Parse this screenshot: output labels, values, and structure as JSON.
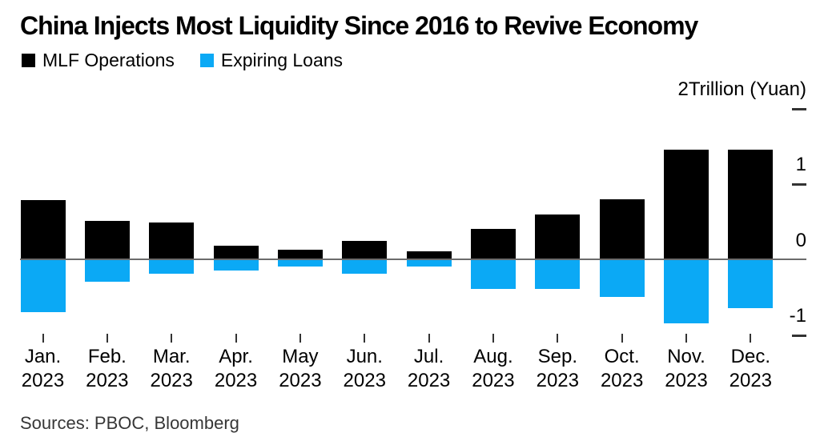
{
  "chart_data": {
    "type": "bar",
    "title": "China Injects Most Liquidity Since 2016 to Revive Economy",
    "source": "Sources: PBOC, Bloomberg",
    "year": "2023",
    "categories": [
      "Jan.",
      "Feb.",
      "Mar.",
      "Apr.",
      "May",
      "Jun.",
      "Jul.",
      "Aug.",
      "Sep.",
      "Oct.",
      "Nov.",
      "Dec."
    ],
    "series": [
      {
        "name": "MLF Operations",
        "color": "#000000",
        "values": [
          0.78,
          0.5,
          0.48,
          0.17,
          0.125,
          0.24,
          0.1,
          0.4,
          0.59,
          0.79,
          1.45,
          1.45
        ]
      },
      {
        "name": "Expiring Loans",
        "color": "#0ba9f5",
        "values": [
          -0.7,
          -0.3,
          -0.2,
          -0.15,
          -0.1,
          -0.2,
          -0.1,
          -0.4,
          -0.4,
          -0.5,
          -0.85,
          -0.65
        ]
      }
    ],
    "unit_label": "2Trillion (Yuan)",
    "yticks": [
      {
        "value": 2,
        "label": "2Trillion (Yuan)"
      },
      {
        "value": 1,
        "label": "1"
      },
      {
        "value": 0,
        "label": "0"
      },
      {
        "value": -1,
        "label": "-1"
      }
    ],
    "ylim": [
      -1.2,
      2.1
    ],
    "grid": false,
    "legend_position": "top-left",
    "axis_colors": {
      "zero_line": "#6b6b6b",
      "tick": "#333333"
    }
  }
}
